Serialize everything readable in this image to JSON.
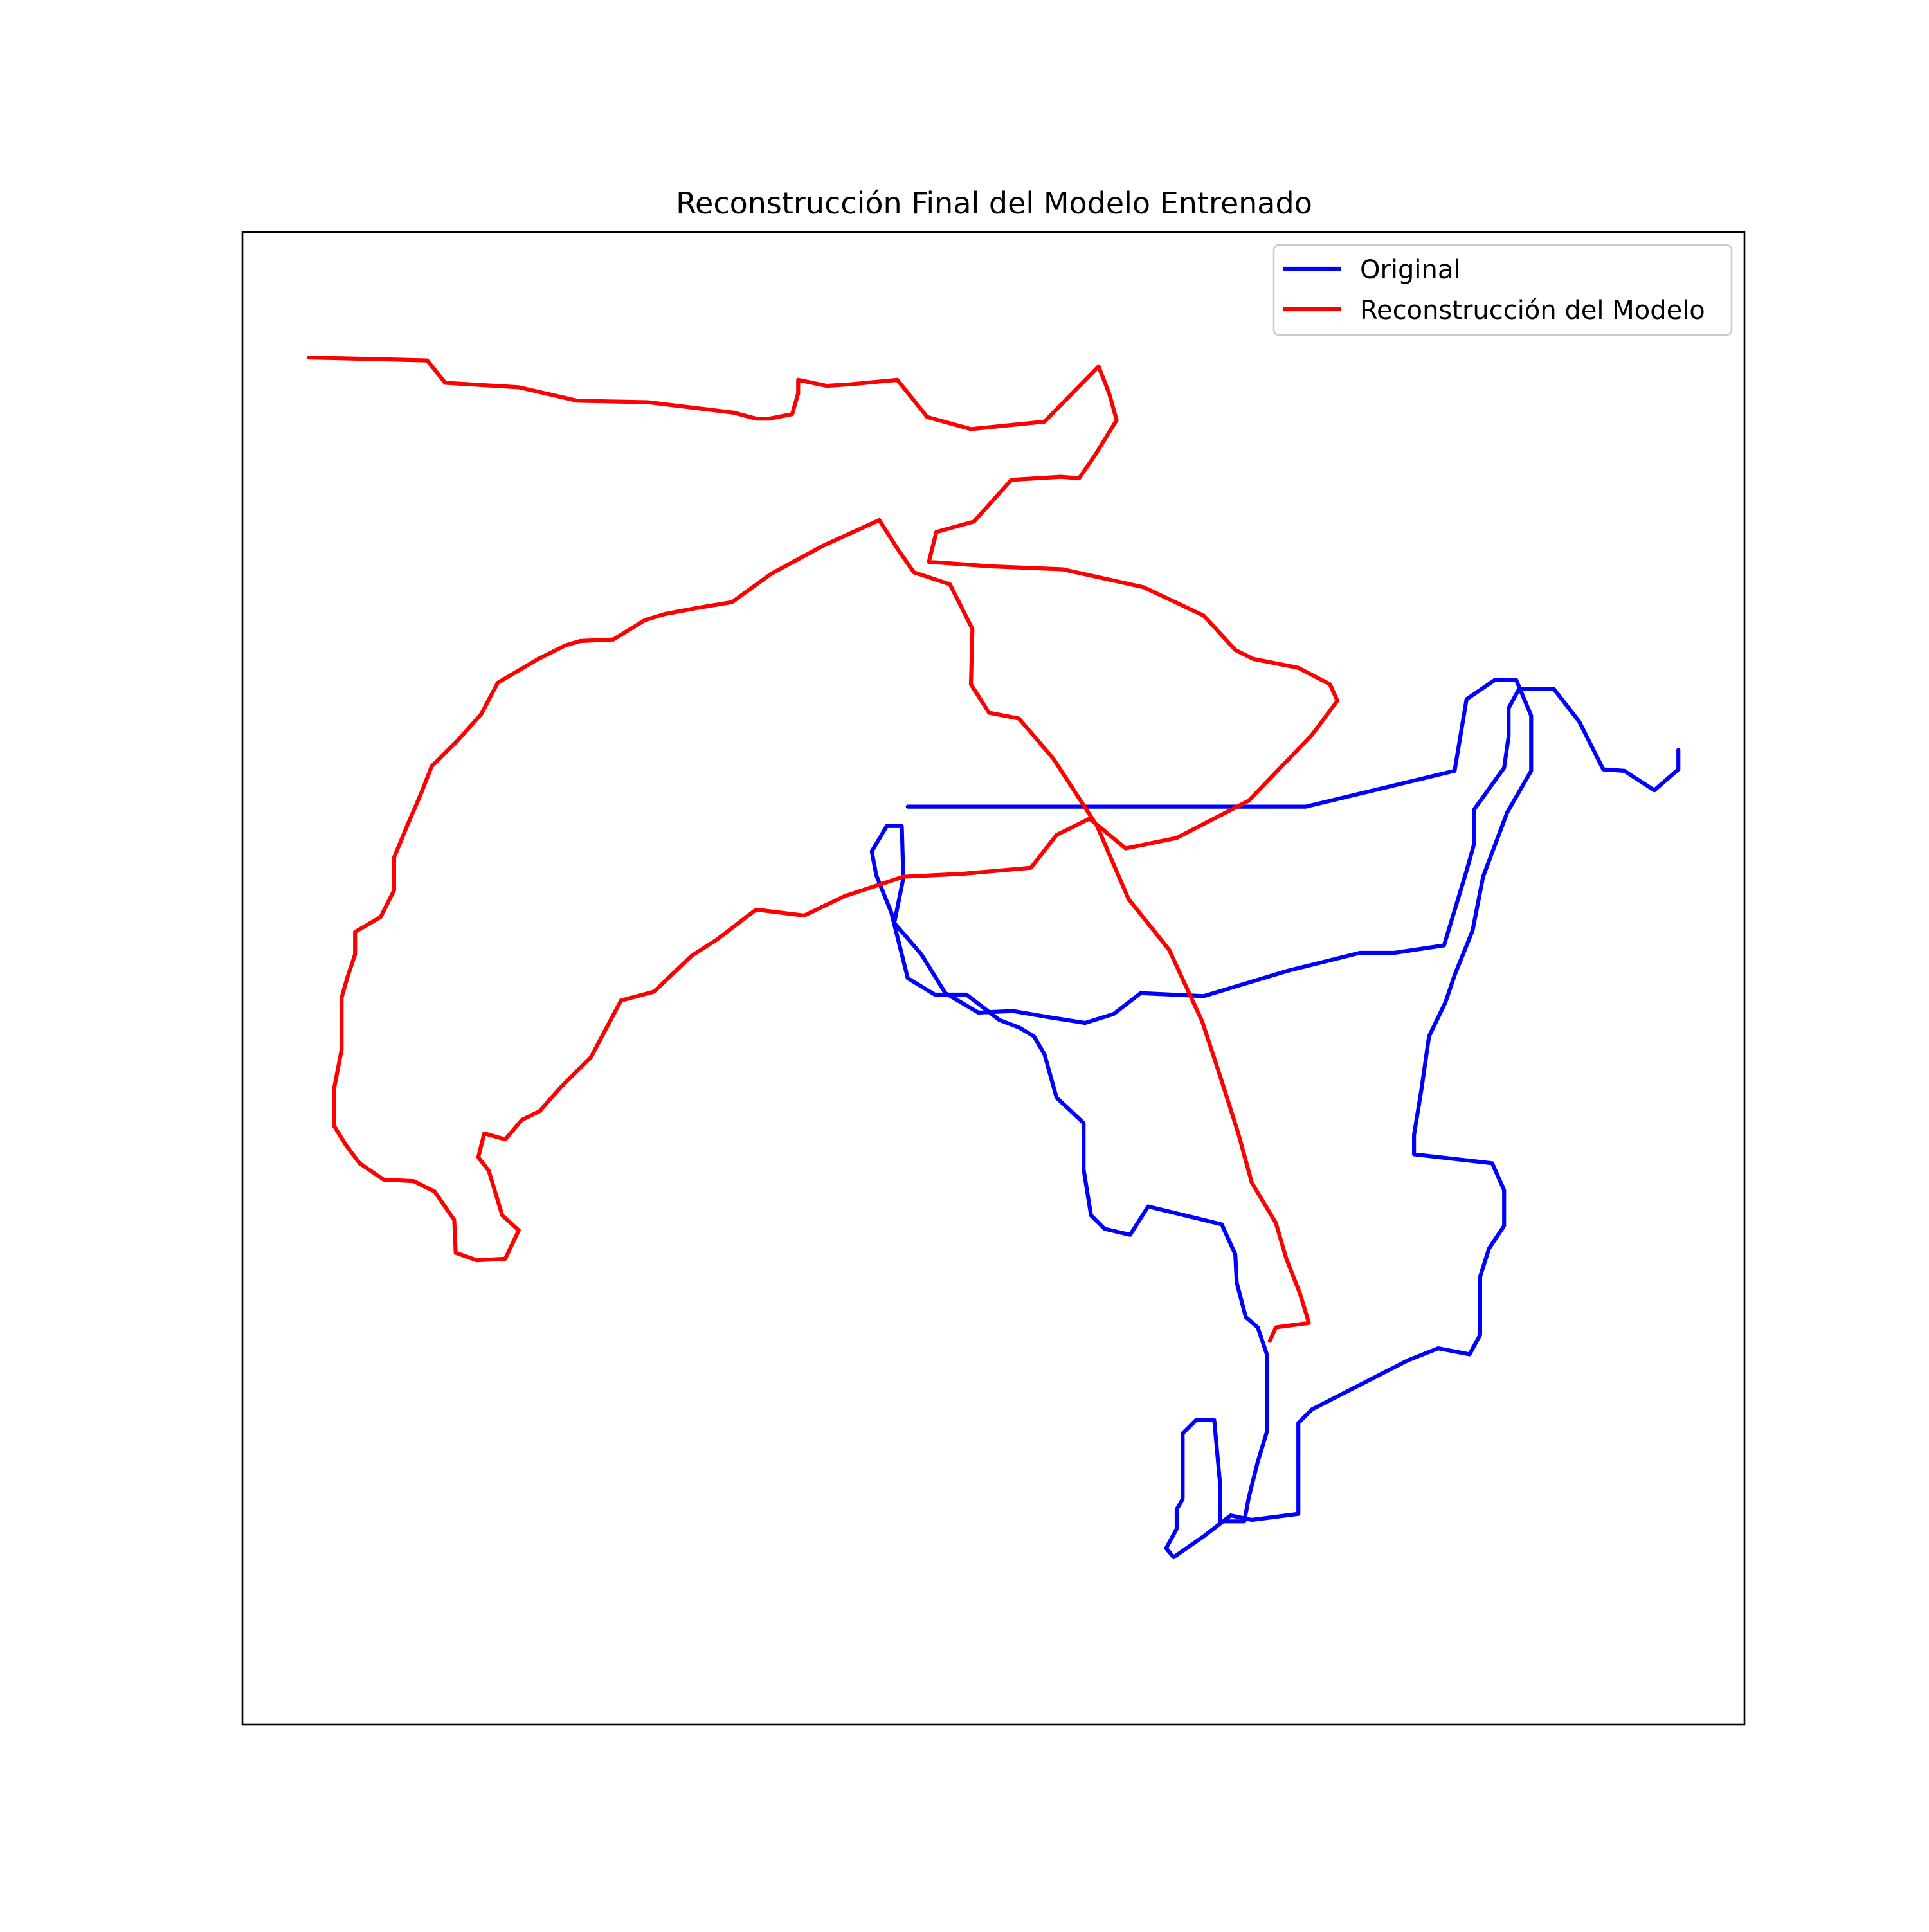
{
  "chart_data": {
    "type": "line",
    "title": "Reconstrucción Final del Modelo Entrenado",
    "xlabel": "",
    "ylabel": "",
    "xlim": [
      0,
      100
    ],
    "ylim": [
      0,
      100
    ],
    "axis_ticks_visible": false,
    "grid": false,
    "legend_position": "top-right",
    "series": [
      {
        "name": "Original",
        "color": "#0000ff",
        "x": [
          44.3,
          70.8,
          80.7,
          81.5,
          83.4,
          84.8,
          85.8,
          85.8,
          84.2,
          82.6,
          81.9,
          80.7,
          80.1,
          79.0,
          78.5,
          78.0,
          78.0,
          83.2,
          84.0,
          84.0,
          83.0,
          82.4,
          82.4,
          81.7,
          79.6,
          77.6,
          71.2,
          70.3,
          70.3,
          67.2,
          65.8,
          64.0,
          62.0,
          61.5,
          62.2,
          62.2,
          62.6,
          62.6,
          63.5,
          64.7,
          65.1,
          65.1,
          66.7,
          67.0,
          67.6,
          68.2,
          68.2,
          67.6,
          66.8,
          66.2,
          66.1,
          65.2,
          63.6,
          60.3,
          59.1,
          57.4,
          56.5,
          56.0,
          56.0,
          54.2,
          53.4,
          52.7,
          51.7,
          50.4,
          48.2,
          46.1,
          44.3,
          43.2,
          42.2,
          41.9,
          42.9,
          43.9,
          44.0,
          43.4,
          45.2,
          46.8,
          49.0,
          51.3,
          53.6,
          56.1,
          58.0,
          59.8,
          64.0,
          69.6,
          74.4,
          76.7,
          80.0,
          81.5,
          82.0,
          82.0,
          84.0,
          84.3,
          84.3,
          85.0,
          87.3,
          89.0,
          90.6,
          92.0,
          94.0,
          95.6,
          95.6
        ],
        "y": [
          61.5,
          61.5,
          63.9,
          68.7,
          70.0,
          70.0,
          67.6,
          63.9,
          61.1,
          56.8,
          53.2,
          50.2,
          48.4,
          46.1,
          42.6,
          39.5,
          38.2,
          37.6,
          35.8,
          33.4,
          31.9,
          30.0,
          26.1,
          24.8,
          25.2,
          24.4,
          21.1,
          20.2,
          14.1,
          13.7,
          14.0,
          12.6,
          11.2,
          11.8,
          13.1,
          14.4,
          15.1,
          19.5,
          20.4,
          20.4,
          16.0,
          13.6,
          13.6,
          15.2,
          17.6,
          19.6,
          24.8,
          26.6,
          27.3,
          29.6,
          31.5,
          33.5,
          33.9,
          34.7,
          32.8,
          33.2,
          34.1,
          37.2,
          40.3,
          42.0,
          44.9,
          46.1,
          46.7,
          47.2,
          48.9,
          48.9,
          50.0,
          54.4,
          56.9,
          58.5,
          60.2,
          60.2,
          56.7,
          53.7,
          51.6,
          49.0,
          47.7,
          47.8,
          47.4,
          47.0,
          47.6,
          49.0,
          48.8,
          50.5,
          51.7,
          51.7,
          52.2,
          57.2,
          59.0,
          61.3,
          64.1,
          66.2,
          68.1,
          69.4,
          69.4,
          67.2,
          64.0,
          63.9,
          62.6,
          64.0,
          65.3
        ]
      },
      {
        "name": "Reconstrucción del Modelo",
        "color": "#ff0000",
        "x": [
          4.4,
          12.3,
          13.5,
          18.4,
          22.3,
          27.0,
          32.7,
          34.2,
          35.1,
          36.6,
          37.0,
          37.0,
          38.9,
          40.5,
          43.6,
          45.6,
          48.5,
          53.4,
          57.0,
          57.7,
          58.2,
          56.8,
          55.7,
          54.5,
          51.2,
          48.7,
          46.2,
          45.7,
          49.8,
          54.6,
          60.0,
          64.0,
          66.1,
          67.3,
          70.3,
          72.4,
          72.9,
          71.2,
          69.0,
          67.0,
          62.2,
          58.8,
          56.4,
          54.2,
          52.5,
          48.0,
          44.0,
          40.1,
          37.4,
          34.2,
          31.6,
          29.9,
          27.4,
          25.2,
          23.2,
          21.2,
          19.8,
          18.6,
          17.5,
          16.1,
          15.7,
          16.4,
          17.3,
          18.4,
          17.5,
          15.6,
          14.2,
          14.1,
          12.8,
          11.4,
          9.4,
          7.8,
          6.9,
          6.1,
          6.1,
          6.6,
          6.6,
          7.0,
          7.5,
          7.5,
          9.2,
          10.1,
          10.1,
          11.0,
          11.9,
          12.6,
          14.3,
          15.9,
          17.0,
          19.7,
          21.5,
          22.5,
          24.7,
          26.8,
          28.1,
          30.2,
          32.6,
          35.2,
          38.7,
          42.4,
          43.6,
          44.7,
          47.1,
          48.6,
          48.5,
          49.7,
          51.7,
          54.0,
          56.9,
          59.0,
          61.7,
          63.9,
          65.2,
          66.3,
          67.2,
          68.8,
          69.5,
          70.4,
          71.0,
          68.8,
          68.4
        ],
        "y": [
          91.6,
          91.4,
          89.9,
          89.6,
          88.7,
          88.6,
          87.9,
          87.5,
          87.5,
          87.8,
          89.2,
          90.1,
          89.7,
          89.8,
          90.1,
          87.6,
          86.8,
          87.3,
          91.0,
          89.2,
          87.4,
          85.1,
          83.5,
          83.6,
          83.4,
          80.6,
          79.9,
          77.9,
          77.6,
          77.4,
          76.2,
          74.3,
          72.0,
          71.4,
          70.8,
          69.7,
          68.6,
          66.3,
          64.0,
          61.9,
          59.4,
          58.7,
          60.7,
          59.6,
          57.4,
          57.0,
          56.8,
          55.5,
          54.2,
          54.6,
          52.6,
          51.5,
          49.1,
          48.5,
          44.7,
          42.7,
          41.1,
          40.5,
          39.2,
          39.6,
          38.0,
          37.1,
          34.1,
          33.1,
          31.2,
          31.1,
          31.6,
          33.8,
          35.7,
          36.4,
          36.5,
          37.6,
          38.8,
          40.1,
          42.6,
          45.2,
          48.7,
          50.1,
          51.6,
          53.1,
          54.1,
          55.9,
          58.1,
          60.3,
          62.4,
          64.2,
          65.9,
          67.7,
          69.8,
          71.4,
          72.3,
          72.6,
          72.7,
          74.0,
          74.4,
          74.8,
          75.2,
          77.1,
          79.0,
          80.7,
          78.8,
          77.2,
          76.4,
          73.4,
          69.7,
          67.8,
          67.4,
          64.7,
          60.2,
          55.3,
          51.9,
          47.1,
          43.1,
          39.6,
          36.3,
          33.6,
          31.2,
          28.9,
          26.9,
          26.6,
          25.7
        ]
      }
    ],
    "legend": {
      "entries": [
        "Original",
        "Reconstrucción del Modelo"
      ]
    }
  }
}
